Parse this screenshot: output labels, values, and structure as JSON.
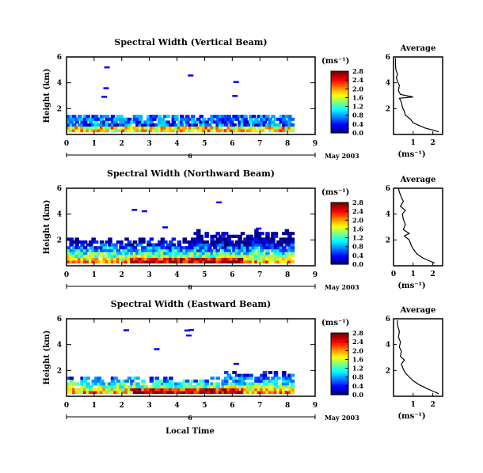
{
  "figure": {
    "xlabel": "Local Time",
    "date_label": "May 2003"
  },
  "chart_data": [
    {
      "type": "heatmap",
      "title": "Spectral Width (Vertical Beam)",
      "ylabel": "Height (km)",
      "xlim": [
        0,
        9
      ],
      "ylim": [
        0,
        6
      ],
      "xticks": [
        "0",
        "1",
        "2",
        "3",
        "4",
        "5",
        "6",
        "7",
        "8",
        "9"
      ],
      "yticks": [
        "2",
        "4",
        "6"
      ],
      "day_marker": "6",
      "colorbar": {
        "unit": "(ms⁻¹)",
        "ticks": [
          "0.0",
          "0.4",
          "0.8",
          "1.2",
          "1.6",
          "2.0",
          "2.4",
          "2.8"
        ]
      },
      "profile": {
        "title": "Average",
        "xlabel": "(ms⁻¹)",
        "xticks": [
          "1",
          "2"
        ],
        "yticks": [
          "2",
          "4",
          "6"
        ],
        "points": [
          [
            2.3,
            0.2
          ],
          [
            2.1,
            0.3
          ],
          [
            1.6,
            0.5
          ],
          [
            1.3,
            0.7
          ],
          [
            1.0,
            0.9
          ],
          [
            0.85,
            1.2
          ],
          [
            0.6,
            1.5
          ],
          [
            0.55,
            1.8
          ],
          [
            0.45,
            2.1
          ],
          [
            0.4,
            2.5
          ],
          [
            0.3,
            2.8
          ],
          [
            1.0,
            2.9
          ],
          [
            0.35,
            3.1
          ],
          [
            0.25,
            3.4
          ],
          [
            0.3,
            3.8
          ],
          [
            0.2,
            4.1
          ],
          [
            0.15,
            4.4
          ],
          [
            0.2,
            4.7
          ],
          [
            0.12,
            5.0
          ],
          [
            0.1,
            5.4
          ],
          [
            0.1,
            5.9
          ]
        ]
      }
    },
    {
      "type": "heatmap",
      "title": "Spectral Width (Northward Beam)",
      "ylabel": "Height (km)",
      "xlim": [
        0,
        9
      ],
      "ylim": [
        0,
        6
      ],
      "xticks": [
        "0",
        "1",
        "2",
        "3",
        "4",
        "5",
        "6",
        "7",
        "8",
        "9"
      ],
      "yticks": [
        "2",
        "4",
        "6"
      ],
      "day_marker": "6",
      "colorbar": {
        "unit": "(ms⁻¹)",
        "ticks": [
          "0.0",
          "0.4",
          "0.8",
          "1.2",
          "1.6",
          "2.0",
          "2.4",
          "2.8"
        ]
      },
      "profile": {
        "title": "Average",
        "xlabel": "(ms⁻¹)",
        "xticks": [
          "0",
          "1",
          "2"
        ],
        "yticks": [
          "2",
          "4",
          "6"
        ],
        "points": [
          [
            2.1,
            0.2
          ],
          [
            1.8,
            0.4
          ],
          [
            1.5,
            0.6
          ],
          [
            1.2,
            0.9
          ],
          [
            1.0,
            1.3
          ],
          [
            0.9,
            1.6
          ],
          [
            0.8,
            2.0
          ],
          [
            0.55,
            2.3
          ],
          [
            0.8,
            2.5
          ],
          [
            0.5,
            2.8
          ],
          [
            0.6,
            3.2
          ],
          [
            0.5,
            3.6
          ],
          [
            0.45,
            4.0
          ],
          [
            0.6,
            4.3
          ],
          [
            0.35,
            4.6
          ],
          [
            0.5,
            5.0
          ],
          [
            0.4,
            5.3
          ],
          [
            0.3,
            5.7
          ],
          [
            0.25,
            6.0
          ]
        ]
      }
    },
    {
      "type": "heatmap",
      "title": "Spectral Width (Eastward Beam)",
      "ylabel": "Height (km)",
      "xlim": [
        0,
        9
      ],
      "ylim": [
        0,
        6
      ],
      "xticks": [
        "0",
        "1",
        "2",
        "3",
        "4",
        "5",
        "6",
        "7",
        "8",
        "9"
      ],
      "yticks": [
        "2",
        "4",
        "6"
      ],
      "day_marker": "6",
      "colorbar": {
        "unit": "(ms⁻¹)",
        "ticks": [
          "0.0",
          "0.4",
          "0.8",
          "1.2",
          "1.6",
          "2.0",
          "2.4",
          "2.8"
        ]
      },
      "profile": {
        "title": "Average",
        "xlabel": "(ms⁻¹)",
        "xticks": [
          "1",
          "2"
        ],
        "yticks": [
          "2",
          "4",
          "6"
        ],
        "points": [
          [
            2.3,
            0.2
          ],
          [
            2.0,
            0.4
          ],
          [
            1.7,
            0.6
          ],
          [
            1.3,
            0.9
          ],
          [
            1.0,
            1.2
          ],
          [
            0.8,
            1.5
          ],
          [
            0.6,
            1.8
          ],
          [
            0.5,
            2.1
          ],
          [
            0.4,
            2.5
          ],
          [
            0.55,
            2.8
          ],
          [
            0.35,
            3.1
          ],
          [
            0.4,
            3.5
          ],
          [
            0.3,
            3.8
          ],
          [
            0.35,
            4.2
          ],
          [
            0.25,
            4.6
          ],
          [
            0.3,
            5.0
          ],
          [
            0.2,
            5.5
          ],
          [
            0.2,
            5.9
          ]
        ]
      }
    }
  ]
}
